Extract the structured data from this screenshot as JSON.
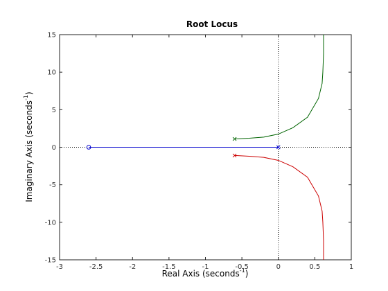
{
  "chart_data": {
    "type": "line",
    "title": "Root Locus",
    "xlabel": "Real Axis (seconds",
    "ylabel": "Imaginary Axis (seconds",
    "label_exponent": "-1",
    "xlim": [
      -3,
      1
    ],
    "ylim": [
      -15,
      15
    ],
    "xticks": [
      -3,
      -2.5,
      -2,
      -1.5,
      -1,
      -0.5,
      0,
      0.5,
      1
    ],
    "yticks": [
      -15,
      -10,
      -5,
      0,
      5,
      10,
      15
    ],
    "xtick_labels": [
      "-3",
      "-2.5",
      "-2",
      "-1.5",
      "-1",
      "-0.5",
      "0",
      "0.5",
      "1"
    ],
    "ytick_labels": [
      "-15",
      "-10",
      "-5",
      "0",
      "5",
      "10",
      "15"
    ],
    "grid": false,
    "series": [
      {
        "color": "#0000cc",
        "points": [
          [
            0,
            0
          ],
          [
            -2.6,
            0
          ]
        ]
      },
      {
        "color": "#006400",
        "points": [
          [
            -0.6,
            1.1
          ],
          [
            -0.4,
            1.2
          ],
          [
            -0.2,
            1.35
          ],
          [
            0,
            1.75
          ],
          [
            0.2,
            2.6
          ],
          [
            0.4,
            4.0
          ],
          [
            0.55,
            6.5
          ],
          [
            0.6,
            8.5
          ],
          [
            0.61,
            10
          ],
          [
            0.62,
            12.5
          ],
          [
            0.62,
            15
          ]
        ]
      },
      {
        "color": "#cc0000",
        "points": [
          [
            -0.6,
            -1.1
          ],
          [
            -0.4,
            -1.2
          ],
          [
            -0.2,
            -1.35
          ],
          [
            0,
            -1.75
          ],
          [
            0.2,
            -2.6
          ],
          [
            0.4,
            -4.0
          ],
          [
            0.55,
            -6.5
          ],
          [
            0.6,
            -8.5
          ],
          [
            0.61,
            -10
          ],
          [
            0.62,
            -12.5
          ],
          [
            0.62,
            -15
          ]
        ]
      }
    ],
    "poles": [
      {
        "x": -0.6,
        "y": 1.1,
        "color": "#006400"
      },
      {
        "x": -0.6,
        "y": -1.1,
        "color": "#cc0000"
      },
      {
        "x": 0,
        "y": 0,
        "color": "#0000cc"
      }
    ],
    "zeros": [
      {
        "x": -2.6,
        "y": 0,
        "color": "#0000cc"
      }
    ]
  }
}
